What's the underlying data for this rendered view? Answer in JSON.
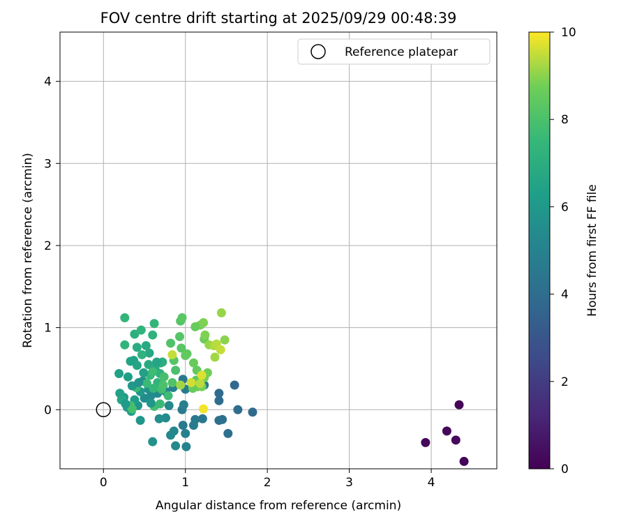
{
  "chart_data": {
    "type": "scatter",
    "title": "FOV centre drift starting at 2025/09/29 00:48:39",
    "xlabel": "Angular distance from reference (arcmin)",
    "ylabel": "Rotation from reference (arcmin)",
    "xlim": [
      -0.53,
      4.8
    ],
    "ylim": [
      -0.72,
      4.6
    ],
    "xticks": [
      0,
      1,
      2,
      3,
      4
    ],
    "yticks": [
      0,
      1,
      2,
      3,
      4
    ],
    "grid": true,
    "legend": {
      "placement": "top-right",
      "label": "Reference platepar"
    },
    "reference_point": {
      "x": 0,
      "y": 0
    },
    "colorbar": {
      "label": "Hours from first FF file",
      "range": [
        0,
        10
      ],
      "ticks": [
        0,
        2,
        4,
        6,
        8,
        10
      ],
      "colormap": "viridis"
    },
    "points": [
      {
        "x": 4.34,
        "y": 0.06,
        "h": 0.1
      },
      {
        "x": 4.19,
        "y": -0.26,
        "h": 0.2
      },
      {
        "x": 4.3,
        "y": -0.37,
        "h": 0.3
      },
      {
        "x": 3.93,
        "y": -0.4,
        "h": 0.2
      },
      {
        "x": 4.4,
        "y": -0.63,
        "h": 0.1
      },
      {
        "x": 1.6,
        "y": 0.3,
        "h": 3.8
      },
      {
        "x": 1.41,
        "y": 0.2,
        "h": 3.9
      },
      {
        "x": 1.41,
        "y": 0.11,
        "h": 4.0
      },
      {
        "x": 1.64,
        "y": 0.0,
        "h": 4.0
      },
      {
        "x": 1.82,
        "y": -0.03,
        "h": 3.9
      },
      {
        "x": 1.41,
        "y": -0.13,
        "h": 4.1
      },
      {
        "x": 1.45,
        "y": -0.12,
        "h": 4.2
      },
      {
        "x": 1.52,
        "y": -0.29,
        "h": 4.2
      },
      {
        "x": 1.21,
        "y": -0.11,
        "h": 4.4
      },
      {
        "x": 1.23,
        "y": 0.3,
        "h": 4.5
      },
      {
        "x": 1.12,
        "y": -0.12,
        "h": 4.6
      },
      {
        "x": 1.1,
        "y": -0.19,
        "h": 4.7
      },
      {
        "x": 0.97,
        "y": -0.19,
        "h": 4.6
      },
      {
        "x": 0.96,
        "y": 0.0,
        "h": 4.6
      },
      {
        "x": 0.98,
        "y": 0.06,
        "h": 4.8
      },
      {
        "x": 1.0,
        "y": -0.29,
        "h": 4.9
      },
      {
        "x": 1.01,
        "y": -0.45,
        "h": 5.0
      },
      {
        "x": 0.86,
        "y": -0.26,
        "h": 5.2
      },
      {
        "x": 0.82,
        "y": -0.31,
        "h": 5.3
      },
      {
        "x": 0.88,
        "y": -0.44,
        "h": 5.3
      },
      {
        "x": 1.0,
        "y": 0.25,
        "h": 4.6
      },
      {
        "x": 0.97,
        "y": 0.37,
        "h": 4.5
      },
      {
        "x": 0.76,
        "y": -0.1,
        "h": 5.4
      },
      {
        "x": 0.68,
        "y": -0.11,
        "h": 5.6
      },
      {
        "x": 0.6,
        "y": -0.39,
        "h": 5.7
      },
      {
        "x": 0.8,
        "y": 0.05,
        "h": 5.3
      },
      {
        "x": 0.45,
        "y": -0.13,
        "h": 5.9
      },
      {
        "x": 0.29,
        "y": 0.03,
        "h": 6.1
      },
      {
        "x": 0.34,
        "y": -0.02,
        "h": 6.2
      },
      {
        "x": 0.42,
        "y": 0.05,
        "h": 5.9
      },
      {
        "x": 0.5,
        "y": 0.14,
        "h": 5.5
      },
      {
        "x": 0.58,
        "y": 0.17,
        "h": 5.4
      },
      {
        "x": 0.66,
        "y": 0.2,
        "h": 5.3
      },
      {
        "x": 0.76,
        "y": 0.22,
        "h": 5.0
      },
      {
        "x": 0.85,
        "y": 0.27,
        "h": 5.0
      },
      {
        "x": 0.55,
        "y": 0.25,
        "h": 5.6
      },
      {
        "x": 0.48,
        "y": 0.35,
        "h": 5.6
      },
      {
        "x": 0.45,
        "y": 0.22,
        "h": 6.0
      },
      {
        "x": 0.38,
        "y": 0.12,
        "h": 6.2
      },
      {
        "x": 0.25,
        "y": 0.15,
        "h": 6.2
      },
      {
        "x": 0.2,
        "y": 0.2,
        "h": 6.4
      },
      {
        "x": 0.22,
        "y": 0.12,
        "h": 6.6
      },
      {
        "x": 0.19,
        "y": 0.44,
        "h": 6.4
      },
      {
        "x": 0.3,
        "y": 0.4,
        "h": 6.3
      },
      {
        "x": 0.37,
        "y": 0.6,
        "h": 6.5
      },
      {
        "x": 0.33,
        "y": 0.59,
        "h": 6.5
      },
      {
        "x": 0.41,
        "y": 0.54,
        "h": 6.6
      },
      {
        "x": 0.55,
        "y": 0.55,
        "h": 6.8
      },
      {
        "x": 0.56,
        "y": 0.69,
        "h": 6.7
      },
      {
        "x": 0.52,
        "y": 0.78,
        "h": 6.8
      },
      {
        "x": 0.41,
        "y": 0.76,
        "h": 6.9
      },
      {
        "x": 0.47,
        "y": 0.67,
        "h": 7.2
      },
      {
        "x": 0.38,
        "y": 0.92,
        "h": 7.1
      },
      {
        "x": 0.46,
        "y": 0.97,
        "h": 7.3
      },
      {
        "x": 0.26,
        "y": 0.79,
        "h": 7.3
      },
      {
        "x": 0.26,
        "y": 1.12,
        "h": 7.4
      },
      {
        "x": 0.6,
        "y": 0.91,
        "h": 7.2
      },
      {
        "x": 0.62,
        "y": 1.05,
        "h": 7.4
      },
      {
        "x": 0.63,
        "y": 0.5,
        "h": 6.9
      },
      {
        "x": 0.7,
        "y": 0.57,
        "h": 7.0
      },
      {
        "x": 0.69,
        "y": 0.44,
        "h": 7.2
      },
      {
        "x": 0.66,
        "y": 0.33,
        "h": 7.3
      },
      {
        "x": 0.61,
        "y": 0.26,
        "h": 7.5
      },
      {
        "x": 0.57,
        "y": 0.42,
        "h": 7.5
      },
      {
        "x": 0.53,
        "y": 0.32,
        "h": 7.6
      },
      {
        "x": 0.4,
        "y": 0.27,
        "h": 7.6
      },
      {
        "x": 0.33,
        "y": 0.05,
        "h": 7.8
      },
      {
        "x": 0.35,
        "y": 0.01,
        "h": 7.9
      },
      {
        "x": 0.62,
        "y": 0.04,
        "h": 7.8
      },
      {
        "x": 0.69,
        "y": 0.07,
        "h": 7.6
      },
      {
        "x": 0.71,
        "y": 0.25,
        "h": 7.8
      },
      {
        "x": 0.74,
        "y": 0.4,
        "h": 7.9
      },
      {
        "x": 0.79,
        "y": 0.17,
        "h": 7.7
      },
      {
        "x": 0.84,
        "y": 0.33,
        "h": 8.1
      },
      {
        "x": 0.88,
        "y": 0.48,
        "h": 8.0
      },
      {
        "x": 0.86,
        "y": 0.6,
        "h": 8.2
      },
      {
        "x": 0.82,
        "y": 0.81,
        "h": 8.1
      },
      {
        "x": 0.95,
        "y": 0.75,
        "h": 8.3
      },
      {
        "x": 0.93,
        "y": 0.89,
        "h": 8.2
      },
      {
        "x": 0.94,
        "y": 1.08,
        "h": 8.2
      },
      {
        "x": 0.96,
        "y": 1.12,
        "h": 8.3
      },
      {
        "x": 1.02,
        "y": 0.68,
        "h": 8.4
      },
      {
        "x": 1.0,
        "y": 0.66,
        "h": 8.5
      },
      {
        "x": 1.1,
        "y": 0.57,
        "h": 8.6
      },
      {
        "x": 1.14,
        "y": 0.48,
        "h": 8.5
      },
      {
        "x": 1.13,
        "y": 0.36,
        "h": 8.4
      },
      {
        "x": 1.09,
        "y": 0.26,
        "h": 8.6
      },
      {
        "x": 1.15,
        "y": 0.28,
        "h": 8.6
      },
      {
        "x": 1.2,
        "y": 0.28,
        "h": 8.8
      },
      {
        "x": 1.23,
        "y": 0.39,
        "h": 8.8
      },
      {
        "x": 1.27,
        "y": 0.45,
        "h": 8.7
      },
      {
        "x": 1.23,
        "y": 0.86,
        "h": 8.7
      },
      {
        "x": 1.18,
        "y": 1.03,
        "h": 8.8
      },
      {
        "x": 1.12,
        "y": 1.01,
        "h": 8.6
      },
      {
        "x": 1.22,
        "y": 1.06,
        "h": 8.9
      },
      {
        "x": 1.24,
        "y": 0.91,
        "h": 8.9
      },
      {
        "x": 1.29,
        "y": 0.79,
        "h": 9.1
      },
      {
        "x": 1.35,
        "y": 0.78,
        "h": 9.3
      },
      {
        "x": 1.38,
        "y": 0.8,
        "h": 9.4
      },
      {
        "x": 1.36,
        "y": 0.64,
        "h": 9.2
      },
      {
        "x": 1.43,
        "y": 0.73,
        "h": 9.5
      },
      {
        "x": 1.48,
        "y": 0.85,
        "h": 9.0
      },
      {
        "x": 1.44,
        "y": 1.18,
        "h": 9.1
      },
      {
        "x": 1.07,
        "y": 0.33,
        "h": 9.6
      },
      {
        "x": 1.18,
        "y": 0.32,
        "h": 9.4
      },
      {
        "x": 1.2,
        "y": 0.42,
        "h": 9.7
      },
      {
        "x": 1.22,
        "y": 0.01,
        "h": 9.9
      },
      {
        "x": 0.84,
        "y": 0.67,
        "h": 9.5
      },
      {
        "x": 0.94,
        "y": 0.3,
        "h": 9.2
      },
      {
        "x": 0.73,
        "y": 0.3,
        "h": 8.0
      },
      {
        "x": 0.6,
        "y": 0.46,
        "h": 7.7
      },
      {
        "x": 0.49,
        "y": 0.45,
        "h": 6.4
      },
      {
        "x": 0.35,
        "y": 0.29,
        "h": 6.0
      },
      {
        "x": 0.27,
        "y": 0.07,
        "h": 6.1
      },
      {
        "x": 0.72,
        "y": 0.58,
        "h": 7.0
      },
      {
        "x": 0.65,
        "y": 0.58,
        "h": 6.6
      },
      {
        "x": 0.58,
        "y": 0.08,
        "h": 5.9
      },
      {
        "x": 0.43,
        "y": 0.33,
        "h": 5.7
      }
    ]
  }
}
